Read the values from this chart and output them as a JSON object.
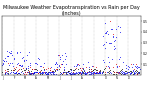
{
  "title": "Milwaukee Weather Evapotranspiration vs Rain per Day\n(Inches)",
  "title_fontsize": 3.5,
  "bg_color": "#ffffff",
  "grid_color": "#888888",
  "blue_color": "#0000ee",
  "red_color": "#dd0000",
  "black_color": "#000000",
  "marker_size": 1.2,
  "num_points": 365,
  "ylim": [
    0,
    0.55
  ],
  "yticks": [
    0.1,
    0.2,
    0.3,
    0.4,
    0.5
  ],
  "ytick_labels": [
    "0.1",
    "0.2",
    "0.3",
    "0.4",
    "0.5"
  ],
  "month_starts": [
    0,
    31,
    59,
    90,
    120,
    151,
    181,
    212,
    243,
    273,
    304,
    334
  ],
  "month_labels": [
    "J",
    "F",
    "M",
    "A",
    "M",
    "J",
    "J",
    "A",
    "S",
    "O",
    "N",
    "D"
  ]
}
